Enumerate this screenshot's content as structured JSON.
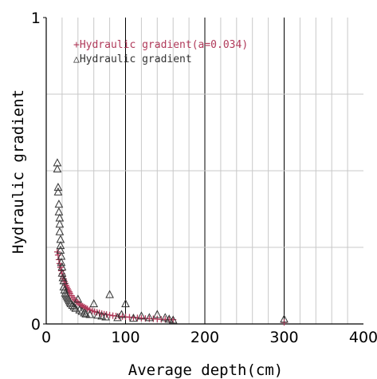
{
  "chart_data": {
    "type": "scatter",
    "xlabel": "Average depth(cm)",
    "ylabel": "Hydraulic gradient",
    "xlim": [
      0,
      400
    ],
    "ylim": [
      0,
      1
    ],
    "x_ticks": [
      "0",
      "100",
      "200",
      "300",
      "400"
    ],
    "y_ticks": [
      "0",
      "1"
    ],
    "grid": true,
    "legend_position": "top-left",
    "series": [
      {
        "name": "+Hydraulic gradient(a=0.034)",
        "marker": "plus",
        "color": "#b03a5a",
        "x": [
          14,
          15,
          16,
          17,
          18,
          19,
          20,
          21,
          22,
          23,
          24,
          25,
          26,
          27,
          28,
          29,
          30,
          32,
          34,
          36,
          38,
          40,
          42,
          44,
          46,
          48,
          50,
          52,
          55,
          58,
          61,
          64,
          67,
          70,
          73,
          76,
          80,
          84,
          88,
          92,
          96,
          100,
          105,
          110,
          115,
          120,
          125,
          130,
          135,
          140,
          145,
          150,
          155,
          160,
          300
        ],
        "y": [
          0.235,
          0.225,
          0.21,
          0.197,
          0.185,
          0.174,
          0.164,
          0.155,
          0.147,
          0.139,
          0.132,
          0.126,
          0.12,
          0.115,
          0.11,
          0.105,
          0.1,
          0.092,
          0.085,
          0.079,
          0.074,
          0.069,
          0.065,
          0.061,
          0.058,
          0.055,
          0.052,
          0.049,
          0.046,
          0.043,
          0.04,
          0.038,
          0.036,
          0.034,
          0.032,
          0.031,
          0.029,
          0.027,
          0.026,
          0.025,
          0.024,
          0.023,
          0.022,
          0.021,
          0.02,
          0.019,
          0.018,
          0.017,
          0.017,
          0.016,
          0.015,
          0.015,
          0.014,
          0.014,
          0.005
        ]
      },
      {
        "name": "△Hydraulic gradient",
        "marker": "triangle",
        "color": "#333333",
        "x": [
          14,
          14,
          15,
          15,
          16,
          16,
          17,
          17,
          17,
          18,
          18,
          18,
          19,
          19,
          20,
          20,
          21,
          22,
          22,
          23,
          24,
          25,
          26,
          27,
          28,
          29,
          30,
          31,
          33,
          35,
          37,
          40,
          42,
          45,
          48,
          50,
          55,
          60,
          65,
          70,
          75,
          80,
          90,
          95,
          100,
          110,
          120,
          130,
          140,
          150,
          155,
          160,
          300
        ],
        "y": [
          0.525,
          0.505,
          0.445,
          0.43,
          0.39,
          0.365,
          0.345,
          0.325,
          0.3,
          0.275,
          0.255,
          0.24,
          0.22,
          0.2,
          0.185,
          0.165,
          0.15,
          0.14,
          0.12,
          0.11,
          0.1,
          0.095,
          0.09,
          0.085,
          0.08,
          0.075,
          0.07,
          0.065,
          0.06,
          0.055,
          0.05,
          0.08,
          0.045,
          0.04,
          0.035,
          0.032,
          0.03,
          0.065,
          0.028,
          0.025,
          0.022,
          0.095,
          0.02,
          0.03,
          0.065,
          0.018,
          0.025,
          0.02,
          0.03,
          0.02,
          0.015,
          0.012,
          0.015
        ]
      }
    ]
  }
}
